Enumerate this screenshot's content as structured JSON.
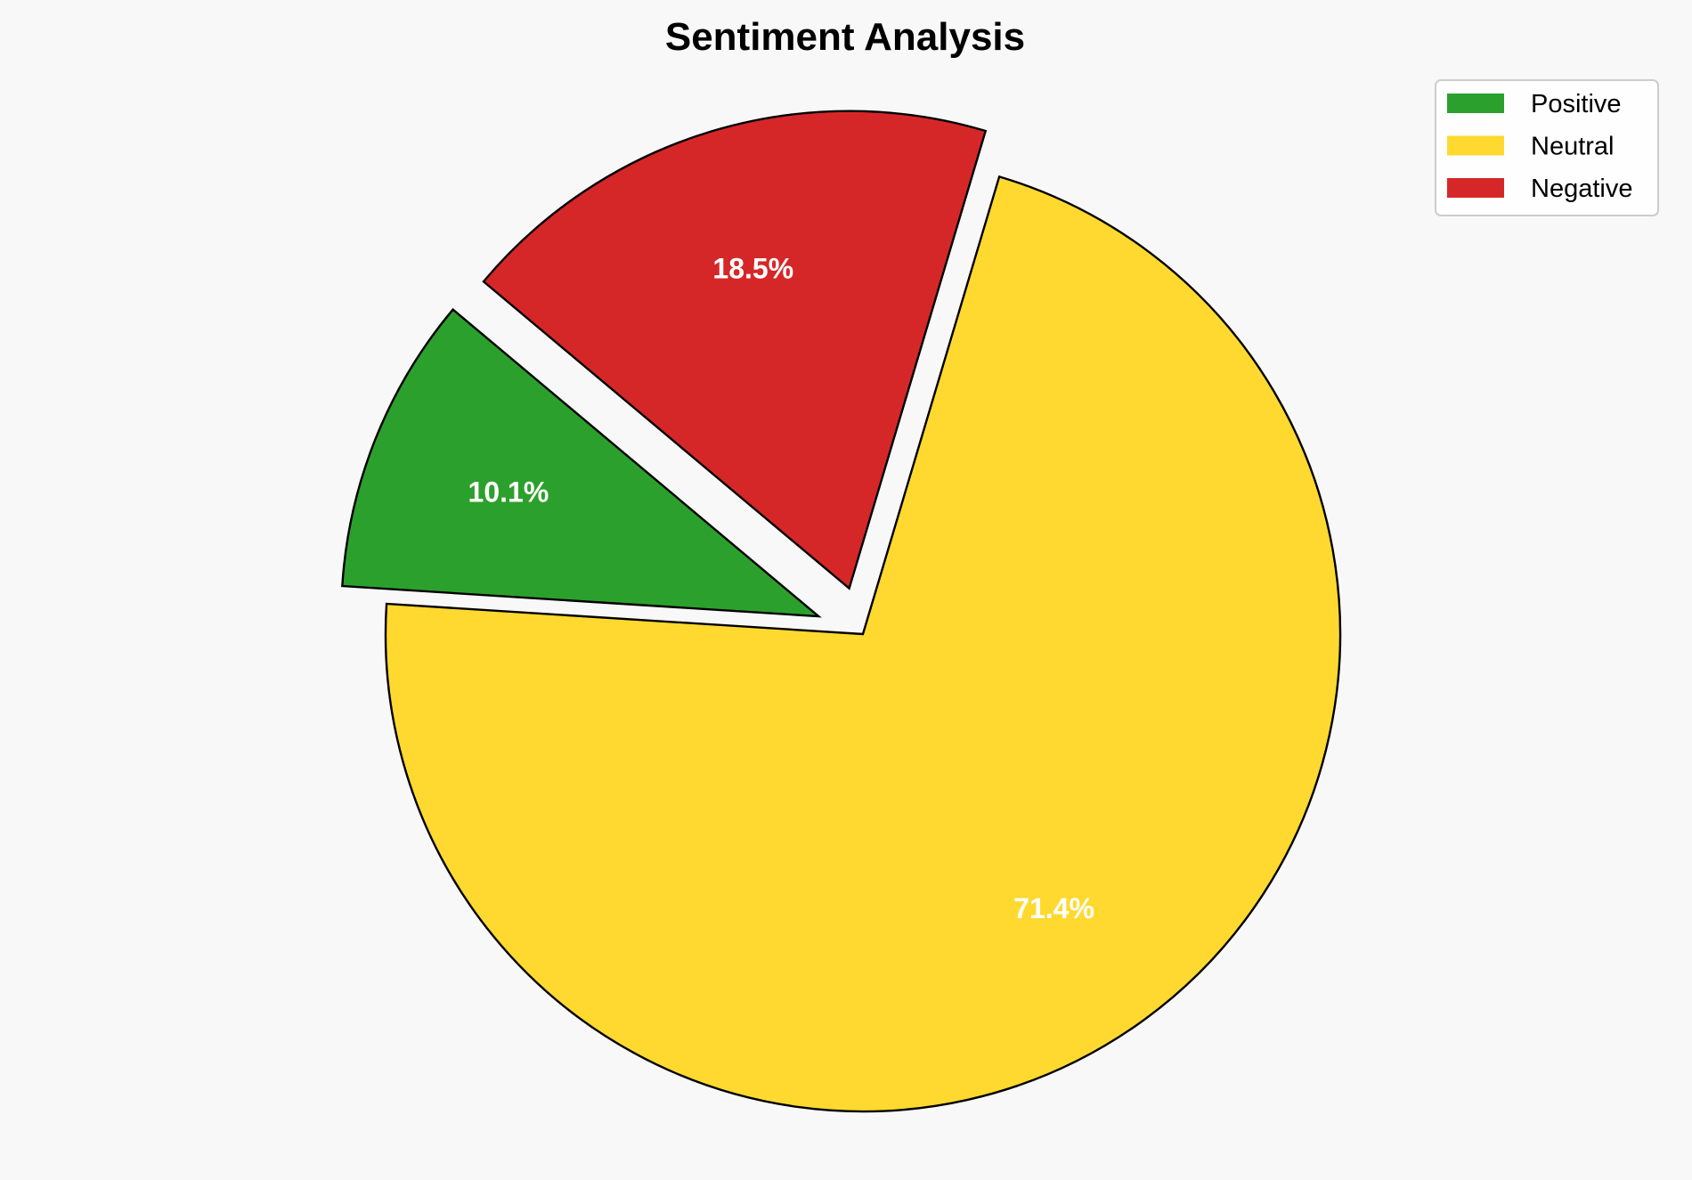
{
  "chart_data": {
    "type": "pie",
    "title": "Sentiment Analysis",
    "categories": [
      "Positive",
      "Neutral",
      "Negative"
    ],
    "values": [
      10.1,
      71.4,
      18.5
    ],
    "labels": [
      "10.1%",
      "71.4%",
      "18.5%"
    ],
    "colors": [
      "#2ca02c",
      "#ffd92f",
      "#d62728"
    ],
    "explode": [
      0.1,
      0,
      0.1
    ],
    "start_angle": 140,
    "direction": "counterclockwise",
    "legend_placement": "top-right",
    "edge_color": "#000000",
    "background": "#f8f8f8"
  }
}
